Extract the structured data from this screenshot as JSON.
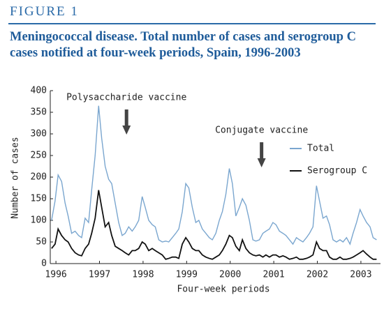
{
  "chart_data": {
    "type": "line",
    "figure_label": "FIGURE 1",
    "title": "Meningococcal disease. Total number of cases and serogroup C cases notified at four-week periods, Spain, 1996-2003",
    "x_label": "Four-week periods",
    "y_label": "Number of cases",
    "annotations": [
      {
        "text": "Polysaccharide vaccine",
        "x": 1997.62
      },
      {
        "text": "Conjugate vaccine",
        "x": 2000.72
      }
    ],
    "x": [
      1995.9,
      1995.98,
      1996.05,
      1996.13,
      1996.21,
      1996.28,
      1996.36,
      1996.44,
      1996.52,
      1996.59,
      1996.67,
      1996.75,
      1996.82,
      1996.9,
      1996.98,
      1997.05,
      1997.13,
      1997.21,
      1997.28,
      1997.36,
      1997.44,
      1997.52,
      1997.59,
      1997.67,
      1997.75,
      1997.82,
      1997.9,
      1997.98,
      1998.05,
      1998.13,
      1998.21,
      1998.28,
      1998.36,
      1998.44,
      1998.52,
      1998.59,
      1998.67,
      1998.75,
      1998.82,
      1998.9,
      1998.98,
      1999.05,
      1999.13,
      1999.21,
      1999.28,
      1999.36,
      1999.44,
      1999.52,
      1999.59,
      1999.67,
      1999.75,
      1999.82,
      1999.9,
      1999.98,
      2000.05,
      2000.13,
      2000.21,
      2000.28,
      2000.36,
      2000.44,
      2000.52,
      2000.59,
      2000.67,
      2000.75,
      2000.82,
      2000.9,
      2000.98,
      2001.05,
      2001.13,
      2001.21,
      2001.28,
      2001.36,
      2001.44,
      2001.52,
      2001.59,
      2001.67,
      2001.75,
      2001.82,
      2001.9,
      2001.98,
      2002.05,
      2002.13,
      2002.21,
      2002.28,
      2002.36,
      2002.44,
      2002.52,
      2002.59,
      2002.67,
      2002.75,
      2002.82,
      2002.9,
      2002.98,
      2003.05,
      2003.13,
      2003.21,
      2003.28,
      2003.36
    ],
    "series": [
      {
        "name": "Total",
        "color": "#7aa6cf",
        "values": [
          100,
          145,
          205,
          190,
          140,
          110,
          70,
          75,
          65,
          60,
          105,
          95,
          170,
          250,
          365,
          290,
          225,
          195,
          185,
          140,
          95,
          65,
          70,
          85,
          75,
          85,
          100,
          155,
          130,
          100,
          90,
          85,
          55,
          50,
          52,
          50,
          60,
          70,
          80,
          120,
          185,
          175,
          130,
          95,
          100,
          80,
          70,
          60,
          55,
          70,
          100,
          120,
          160,
          220,
          185,
          110,
          130,
          150,
          135,
          100,
          55,
          52,
          55,
          70,
          75,
          80,
          95,
          90,
          75,
          70,
          65,
          55,
          45,
          60,
          55,
          50,
          60,
          70,
          85,
          180,
          145,
          105,
          110,
          90,
          55,
          50,
          55,
          50,
          60,
          45,
          70,
          95,
          125,
          110,
          95,
          85,
          60,
          55
        ]
      },
      {
        "name": "Serogroup C",
        "color": "#111111",
        "values": [
          35,
          45,
          80,
          65,
          55,
          50,
          35,
          25,
          20,
          18,
          35,
          45,
          70,
          105,
          170,
          130,
          85,
          95,
          65,
          40,
          35,
          30,
          25,
          20,
          30,
          30,
          35,
          50,
          45,
          30,
          35,
          30,
          25,
          20,
          10,
          12,
          15,
          15,
          12,
          45,
          60,
          50,
          35,
          30,
          30,
          20,
          15,
          12,
          10,
          15,
          20,
          30,
          45,
          65,
          60,
          40,
          30,
          55,
          35,
          25,
          20,
          18,
          20,
          15,
          20,
          15,
          20,
          20,
          15,
          18,
          15,
          10,
          12,
          15,
          10,
          10,
          12,
          15,
          20,
          50,
          35,
          30,
          30,
          15,
          10,
          10,
          15,
          10,
          10,
          12,
          15,
          20,
          25,
          30,
          22,
          15,
          10,
          10
        ]
      }
    ],
    "xlim": [
      1995.87,
      2003.45
    ],
    "xticks": [
      1996,
      1997,
      1998,
      1999,
      2000,
      2001,
      2002,
      2003
    ],
    "ylim": [
      0,
      400
    ],
    "yticks": [
      0,
      50,
      100,
      150,
      200,
      250,
      300,
      350,
      400
    ],
    "legend": "right"
  }
}
